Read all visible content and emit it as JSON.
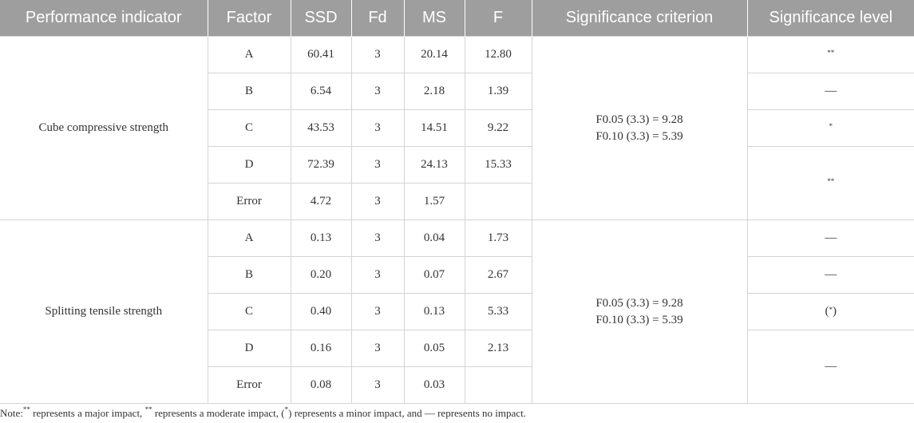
{
  "headers": [
    "Performance indicator",
    "Factor",
    "SSD",
    "Fd",
    "MS",
    "F",
    "Significance criterion",
    "Significance level"
  ],
  "groups": [
    {
      "indicator": "Cube compressive strength",
      "criterion": [
        "F0.05 (3.3) = 9.28",
        "F0.10 (3.3) = 5.39"
      ],
      "rows": [
        {
          "factor": "A",
          "ssd": "60.41",
          "fd": "3",
          "ms": "20.14",
          "f": "12.80"
        },
        {
          "factor": "B",
          "ssd": "6.54",
          "fd": "3",
          "ms": "2.18",
          "f": "1.39"
        },
        {
          "factor": "C",
          "ssd": "43.53",
          "fd": "3",
          "ms": "14.51",
          "f": "9.22"
        },
        {
          "factor": "D",
          "ssd": "72.39",
          "fd": "3",
          "ms": "24.13",
          "f": "15.33"
        },
        {
          "factor": "Error",
          "ssd": "4.72",
          "fd": "3",
          "ms": "1.57",
          "f": ""
        }
      ],
      "levels": [
        "**",
        "—",
        "*",
        "**"
      ]
    },
    {
      "indicator": "Splitting tensile strength",
      "criterion": [
        "F0.05 (3.3) = 9.28",
        "F0.10 (3.3) = 5.39"
      ],
      "rows": [
        {
          "factor": "A",
          "ssd": "0.13",
          "fd": "3",
          "ms": "0.04",
          "f": "1.73"
        },
        {
          "factor": "B",
          "ssd": "0.20",
          "fd": "3",
          "ms": "0.07",
          "f": "2.67"
        },
        {
          "factor": "C",
          "ssd": "0.40",
          "fd": "3",
          "ms": "0.13",
          "f": "5.33"
        },
        {
          "factor": "D",
          "ssd": "0.16",
          "fd": "3",
          "ms": "0.05",
          "f": "2.13"
        },
        {
          "factor": "Error",
          "ssd": "0.08",
          "fd": "3",
          "ms": "0.03",
          "f": ""
        }
      ],
      "levels_pre": [
        "—",
        "—"
      ],
      "levels_paren": {
        "open": "(",
        "mark": "*",
        "close": ")"
      },
      "levels_last": "—"
    }
  ],
  "note": {
    "prefix": "Note:",
    "mark1": "**",
    "text1": " represents a major impact, ",
    "mark2": "**",
    "text2": " represents a moderate impact, (",
    "mark3": "*",
    "text3": ") represents a minor impact, and — represents no impact."
  }
}
